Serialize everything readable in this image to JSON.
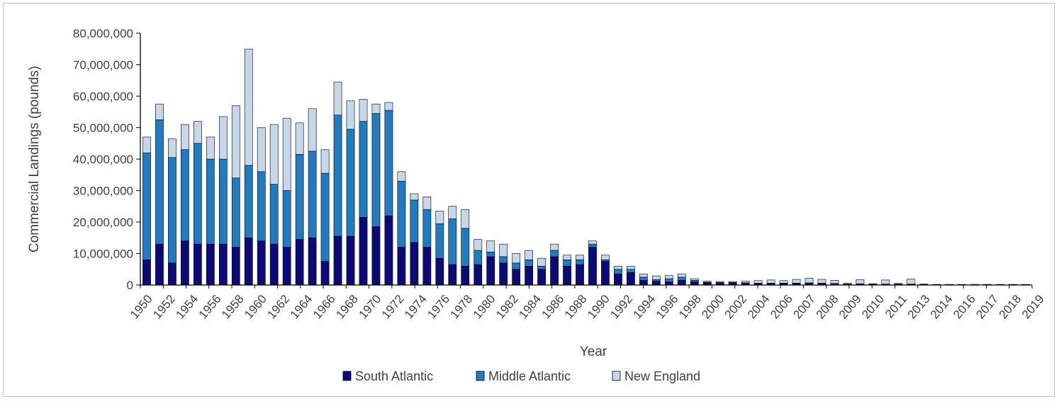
{
  "chart_data": {
    "type": "bar",
    "stacked": true,
    "xlabel": "Year",
    "ylabel": "Commercial Landings (pounds)",
    "ylim": [
      0,
      80000000
    ],
    "yticks": [
      "0",
      "10,000,000",
      "20,000,000",
      "30,000,000",
      "40,000,000",
      "50,000,000",
      "60,000,000",
      "70,000,000",
      "80,000,000"
    ],
    "grid": false,
    "legend_position": "bottom",
    "categories": [
      "1950",
      "1951",
      "1952",
      "1953",
      "1954",
      "1955",
      "1956",
      "1957",
      "1958",
      "1959",
      "1960",
      "1961",
      "1962",
      "1963",
      "1964",
      "1965",
      "1966",
      "1967",
      "1968",
      "1969",
      "1970",
      "1971",
      "1972",
      "1973",
      "1974",
      "1975",
      "1976",
      "1977",
      "1978",
      "1979",
      "1980",
      "1981",
      "1982",
      "1983",
      "1984",
      "1985",
      "1986",
      "1987",
      "1988",
      "1989",
      "1990",
      "1991",
      "1992",
      "1993",
      "1994",
      "1995",
      "1996",
      "1997",
      "1998",
      "1999",
      "2000",
      "2001",
      "2002",
      "2003",
      "2004",
      "2005",
      "2006",
      "2007",
      "2008",
      "2009",
      "2010",
      "2011",
      "2012",
      "2013",
      "2014",
      "2015",
      "2016",
      "2017",
      "2018",
      "2019"
    ],
    "tick_labels": [
      "1950",
      "1952",
      "1954",
      "1956",
      "1958",
      "1960",
      "1962",
      "1964",
      "1966",
      "1968",
      "1970",
      "1972",
      "1974",
      "1976",
      "1978",
      "1980",
      "1982",
      "1984",
      "1986",
      "1988",
      "1990",
      "1992",
      "1994",
      "1996",
      "1998",
      "2000",
      "2002",
      "2004",
      "2006",
      "2007",
      "2008",
      "2009",
      "2010",
      "2011",
      "2013",
      "2014",
      "2016",
      "2017",
      "2018",
      "2019"
    ],
    "series": [
      {
        "name": "South Atlantic",
        "color": "#0a0a7c",
        "values": [
          8000000,
          13000000,
          7000000,
          14000000,
          13000000,
          13000000,
          13000000,
          12000000,
          15000000,
          14000000,
          13000000,
          12000000,
          14500000,
          15000000,
          7500000,
          15500000,
          15500000,
          21500000,
          18500000,
          22000000,
          12000000,
          13500000,
          12000000,
          8500000,
          6500000,
          6000000,
          6500000,
          9000000,
          7000000,
          5000000,
          6000000,
          5000000,
          9000000,
          6000000,
          6500000,
          12000000,
          7500000,
          3500000,
          4000000,
          1500000,
          1200000,
          1000000,
          1500000,
          1000000,
          700000,
          600000,
          600000,
          500000,
          400000,
          400000,
          400000,
          400000,
          500000,
          400000,
          300000,
          200000,
          300000,
          200000,
          200000,
          200000,
          200000,
          200000,
          100000,
          100000,
          100000,
          100000,
          100000,
          100000,
          100000,
          100000
        ]
      },
      {
        "name": "Middle Atlantic",
        "color": "#1f7bc2",
        "values": [
          34000000,
          39500000,
          33500000,
          29000000,
          32000000,
          27000000,
          27000000,
          22000000,
          23000000,
          22000000,
          19000000,
          18000000,
          27000000,
          27500000,
          28000000,
          38500000,
          34000000,
          30500000,
          36000000,
          33500000,
          21000000,
          13500000,
          12000000,
          11000000,
          14500000,
          12000000,
          4500000,
          1500000,
          2000000,
          2000000,
          2000000,
          1000000,
          2000000,
          2000000,
          1500000,
          1000000,
          500000,
          1500000,
          1000000,
          1000000,
          500000,
          1000000,
          1000000,
          500000,
          200000,
          200000,
          200000,
          200000,
          200000,
          200000,
          200000,
          200000,
          200000,
          200000,
          200000,
          100000,
          100000,
          100000,
          100000,
          100000,
          100000,
          50000,
          50000,
          50000,
          50000,
          50000,
          50000,
          50000,
          50000,
          50000
        ]
      },
      {
        "name": "New England",
        "color": "#c6d7ea",
        "values": [
          5000000,
          5000000,
          6000000,
          8000000,
          7000000,
          7000000,
          13500000,
          23000000,
          37000000,
          14000000,
          19000000,
          23000000,
          10000000,
          13500000,
          7500000,
          10500000,
          9000000,
          7000000,
          3000000,
          2500000,
          3000000,
          2000000,
          4000000,
          4000000,
          4000000,
          6000000,
          3500000,
          3500000,
          4000000,
          3000000,
          3000000,
          2500000,
          2000000,
          1500000,
          1500000,
          1000000,
          1500000,
          1000000,
          1000000,
          1000000,
          1200000,
          1000000,
          1000000,
          500000,
          300000,
          300000,
          300000,
          500000,
          800000,
          1000000,
          800000,
          1200000,
          1500000,
          1200000,
          1000000,
          300000,
          1300000,
          100000,
          1300000,
          200000,
          1600000,
          50000,
          50000,
          50000,
          50000,
          50000,
          50000,
          50000,
          50000,
          50000
        ]
      }
    ]
  }
}
